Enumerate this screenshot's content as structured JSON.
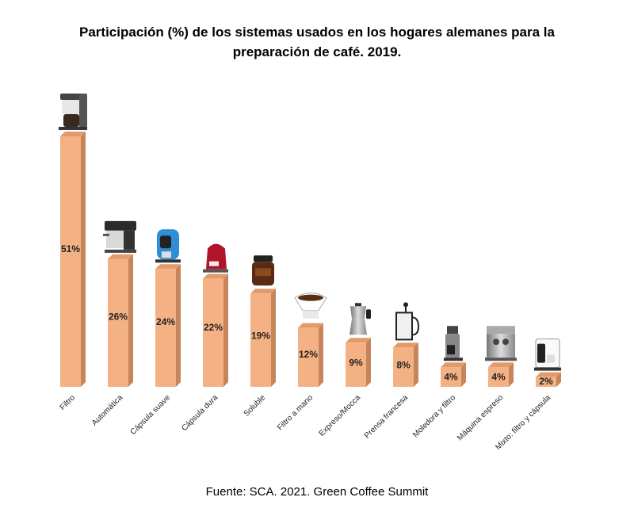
{
  "chart_data": {
    "type": "bar",
    "title": "Participación (%) de los sistemas usados en los hogares alemanes para la preparación de café. 2019.",
    "source": "Fuente: SCA. 2021. Green Coffee Summit",
    "categories": [
      "Filtro",
      "Automática",
      "Cápsula suave",
      "Cápsula dura",
      "Soluble",
      "Filtro a mano",
      "Expreso/Mocca",
      "Prensa francesa",
      "Moledora y filtro",
      "Máquina espreso",
      "Mixto: filtro y cápsula"
    ],
    "values": [
      51,
      26,
      24,
      22,
      19,
      12,
      9,
      8,
      4,
      4,
      2
    ],
    "value_labels": [
      "51%",
      "26%",
      "24%",
      "22%",
      "19%",
      "12%",
      "9%",
      "8%",
      "4%",
      "4%",
      "2%"
    ],
    "icons": [
      "drip-coffee-maker-icon",
      "espresso-machine-icon",
      "capsule-machine-blue-icon",
      "capsule-machine-red-icon",
      "instant-coffee-jar-icon",
      "pour-over-dripper-icon",
      "moka-pot-icon",
      "french-press-icon",
      "grinder-filter-icon",
      "espresso-machine-steel-icon",
      "combo-filter-capsule-icon"
    ],
    "ylim": [
      0,
      51
    ],
    "bar_color": "#f4b183",
    "bar_side_color": "#c7855c",
    "bar_top_color": "#e39a6a"
  }
}
